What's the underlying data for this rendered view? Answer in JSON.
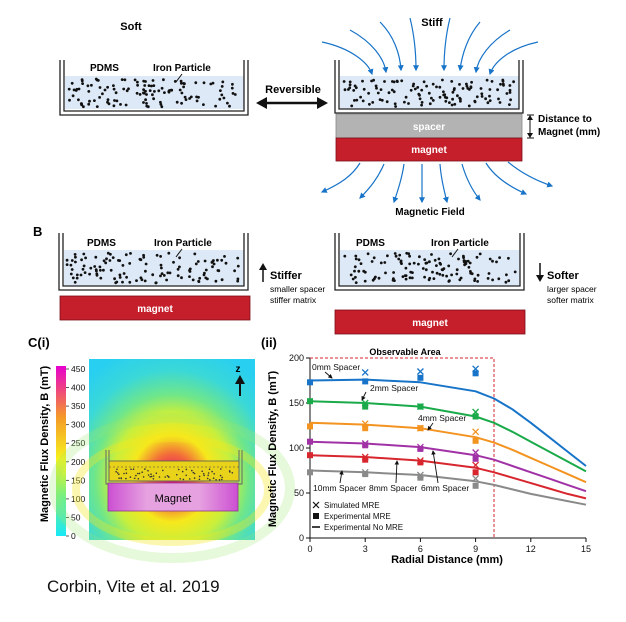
{
  "panelA": {
    "soft_label": "Soft",
    "stiff_label": "Stiff",
    "pdms_label": "PDMS",
    "iron_label": "Iron Particle",
    "reversible_label": "Reversible",
    "spacer_label": "spacer",
    "magnet_label": "magnet",
    "distance_label_1": "Distance to",
    "distance_label_2": "Magnet (mm)",
    "field_label": "Magnetic Field"
  },
  "panelB": {
    "letter": "B",
    "pdms_label": "PDMS",
    "iron_label": "Iron Particle",
    "magnet_label": "magnet",
    "stiffer_label": "Stiffer",
    "stiffer_sub_1": "smaller spacer",
    "stiffer_sub_2": "stiffer matrix",
    "softer_label": "Softer",
    "softer_sub_1": "larger spacer",
    "softer_sub_2": "softer matrix"
  },
  "panelC": {
    "letter": "C(i)",
    "sub_ii": "(ii)",
    "colorbar_title": "Magnetic Flux Density, B (mT)",
    "colorbar_ticks": [
      "450",
      "400",
      "350",
      "300",
      "250",
      "200",
      "150",
      "100",
      "50",
      "0"
    ],
    "colors": {
      "low": "#29e0f0",
      "mid": "#f6e81c",
      "high": "#e6007e",
      "magnet_rect": "#c51f2c",
      "spacer_rect": "#b3b3b3"
    },
    "sim_magnet_label": "Magnet",
    "z_label": "z"
  },
  "chart_data": {
    "type": "line",
    "title": "",
    "xlabel": "Radial Distance (mm)",
    "ylabel": "Magnetic Flux Density, B (mT)",
    "xlim": [
      0,
      15
    ],
    "ylim": [
      0,
      200
    ],
    "xticks": [
      "0",
      "3",
      "6",
      "9",
      "12",
      "15"
    ],
    "yticks": [
      "0",
      "50",
      "100",
      "150",
      "200"
    ],
    "observable_area_label": "Observable Area",
    "observable_area_x": 10,
    "legend": {
      "placement": "bottom-left",
      "entries": [
        "Simulated MRE",
        "Experimental MRE",
        "Experimental No MRE"
      ]
    },
    "series": [
      {
        "name": "0mm Spacer",
        "color": "#1874c8",
        "x": [
          0,
          3,
          6,
          9,
          10,
          11,
          12,
          13,
          14,
          15
        ],
        "curve": [
          175,
          176,
          173,
          163,
          155,
          143,
          128,
          112,
          96,
          80
        ],
        "simulated": [
          null,
          184,
          185,
          188
        ],
        "experimental": [
          173,
          174,
          178,
          183
        ]
      },
      {
        "name": "2mm Spacer",
        "color": "#1aaa4a",
        "x": [
          0,
          3,
          6,
          9,
          10,
          11,
          12,
          13,
          14,
          15
        ],
        "curve": [
          152,
          150,
          146,
          135,
          128,
          118,
          107,
          96,
          85,
          74
        ],
        "simulated": [
          null,
          150,
          146,
          140
        ],
        "experimental": [
          152,
          146,
          146,
          135
        ]
      },
      {
        "name": "4mm Spacer",
        "color": "#f39320",
        "x": [
          0,
          3,
          6,
          9,
          10,
          11,
          12,
          13,
          14,
          15
        ],
        "curve": [
          128,
          126,
          122,
          112,
          106,
          98,
          89,
          80,
          71,
          62
        ],
        "simulated": [
          null,
          127,
          122,
          118
        ],
        "experimental": [
          124,
          122,
          122,
          108
        ]
      },
      {
        "name": "6mm Spacer",
        "color": "#a132a6",
        "x": [
          0,
          3,
          6,
          9,
          10,
          11,
          12,
          13,
          14,
          15
        ],
        "curve": [
          107,
          105,
          101,
          92,
          87,
          80,
          73,
          66,
          59,
          52
        ],
        "simulated": [
          null,
          105,
          101,
          95
        ],
        "experimental": [
          107,
          103,
          99,
          88
        ]
      },
      {
        "name": "8mm Spacer",
        "color": "#d8262e",
        "x": [
          0,
          3,
          6,
          9,
          10,
          11,
          12,
          13,
          14,
          15
        ],
        "curve": [
          92,
          90,
          86,
          78,
          73,
          67,
          61,
          55,
          49,
          44
        ],
        "simulated": [
          null,
          90,
          86,
          81
        ],
        "experimental": [
          92,
          87,
          84,
          73
        ]
      },
      {
        "name": "10mm Spacer",
        "color": "#8a8a8a",
        "x": [
          0,
          3,
          6,
          9,
          10,
          11,
          12,
          13,
          14,
          15
        ],
        "curve": [
          75,
          73,
          70,
          63,
          59,
          54,
          49,
          45,
          41,
          37
        ],
        "simulated": [
          null,
          73,
          70,
          66
        ],
        "experimental": [
          73,
          71,
          67,
          58
        ]
      }
    ],
    "annotations": [
      {
        "text": "0mm Spacer",
        "series": 0
      },
      {
        "text": "2mm Spacer",
        "series": 1
      },
      {
        "text": "4mm Spacer",
        "series": 2
      },
      {
        "text": "10mm Spacer",
        "series": 5
      },
      {
        "text": "8mm Spacer",
        "series": 4
      },
      {
        "text": "6mm Spacer",
        "series": 3
      }
    ]
  },
  "caption": "Corbin, Vite et al. 2019"
}
